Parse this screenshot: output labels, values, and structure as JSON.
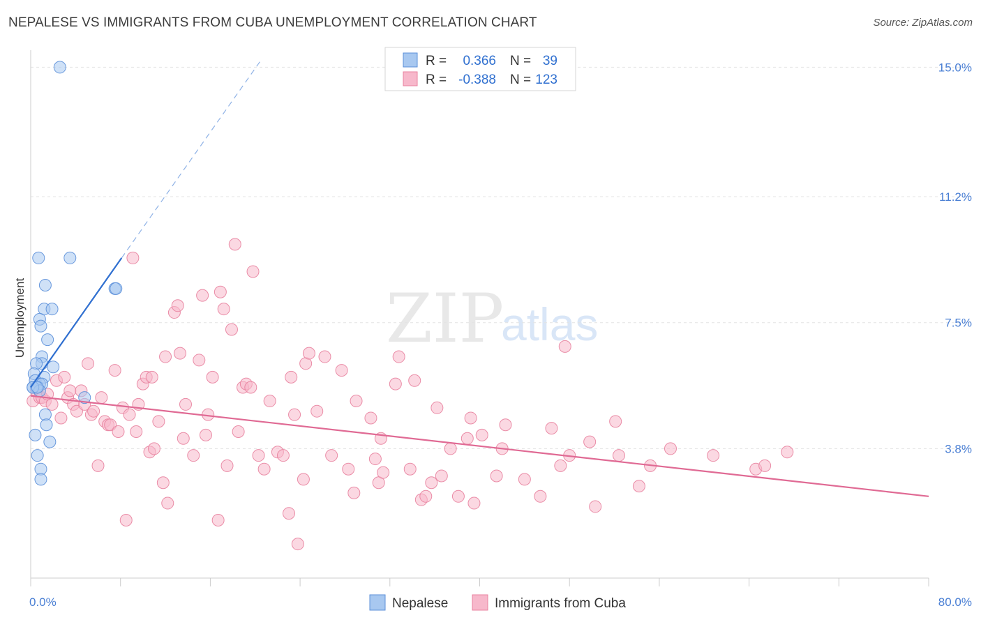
{
  "title": "NEPALESE VS IMMIGRANTS FROM CUBA UNEMPLOYMENT CORRELATION CHART",
  "source": "Source: ZipAtlas.com",
  "watermark": {
    "zip": "ZIP",
    "atlas": "atlas"
  },
  "stats_box": {
    "r_label": "R =",
    "n_label": "N =",
    "rows": [
      {
        "series": "Nepalese",
        "r": "0.366",
        "n": "39",
        "color": "#a8c8f0",
        "stroke": "#5b8fd9"
      },
      {
        "series": "Immigrants from Cuba",
        "r": "-0.388",
        "n": "123",
        "color": "#f7b8cb",
        "stroke": "#e8829f"
      }
    ]
  },
  "chart_data": {
    "type": "scatter",
    "title": "NEPALESE VS IMMIGRANTS FROM CUBA UNEMPLOYMENT CORRELATION CHART",
    "xlabel": "",
    "ylabel": "Unemployment",
    "xlim": [
      0,
      80
    ],
    "ylim": [
      0,
      15.5
    ],
    "x_tick_labels": [
      {
        "value": 0,
        "label": "0.0%"
      },
      {
        "value": 80,
        "label": "80.0%"
      }
    ],
    "y_tick_labels": [
      {
        "value": 3.8,
        "label": "3.8%"
      },
      {
        "value": 7.5,
        "label": "7.5%"
      },
      {
        "value": 11.2,
        "label": "11.2%"
      },
      {
        "value": 15.0,
        "label": "15.0%"
      }
    ],
    "grid": "horizontal-dashed",
    "legend_position": "bottom-center",
    "series": [
      {
        "name": "Nepalese",
        "color": "#a8c8f0",
        "stroke": "#5b8fd9",
        "trend": {
          "x0": 0,
          "y0": 5.6,
          "x1": 8.1,
          "y1": 9.4,
          "dash_to_x": 20.5,
          "dash_to_y": 15.2,
          "color": "#2f6fd0"
        },
        "points": [
          [
            2.6,
            15.0
          ],
          [
            0.7,
            9.4
          ],
          [
            3.5,
            9.4
          ],
          [
            1.3,
            8.6
          ],
          [
            7.5,
            8.5
          ],
          [
            7.6,
            8.5
          ],
          [
            1.2,
            7.9
          ],
          [
            1.9,
            7.9
          ],
          [
            0.8,
            7.6
          ],
          [
            0.9,
            7.4
          ],
          [
            1.5,
            7.0
          ],
          [
            1.0,
            6.5
          ],
          [
            1.0,
            6.3
          ],
          [
            2.0,
            6.2
          ],
          [
            0.5,
            6.3
          ],
          [
            0.3,
            6.0
          ],
          [
            1.2,
            5.9
          ],
          [
            0.4,
            5.8
          ],
          [
            0.8,
            5.7
          ],
          [
            1.0,
            5.7
          ],
          [
            0.2,
            5.6
          ],
          [
            0.5,
            5.6
          ],
          [
            0.8,
            5.5
          ],
          [
            0.2,
            5.6
          ],
          [
            0.6,
            5.6
          ],
          [
            4.8,
            5.3
          ],
          [
            1.3,
            4.8
          ],
          [
            1.4,
            4.5
          ],
          [
            0.4,
            4.2
          ],
          [
            1.7,
            4.0
          ],
          [
            0.6,
            3.6
          ],
          [
            0.9,
            3.2
          ],
          [
            0.9,
            2.9
          ]
        ]
      },
      {
        "name": "Immigrants from Cuba",
        "color": "#f7b8cb",
        "stroke": "#e8829f",
        "trend": {
          "x0": 0,
          "y0": 5.35,
          "x1": 80,
          "y1": 2.4,
          "color": "#e06a94"
        },
        "points": [
          [
            0.2,
            5.2
          ],
          [
            0.5,
            5.5
          ],
          [
            0.8,
            5.3
          ],
          [
            1.0,
            5.3
          ],
          [
            1.3,
            5.2
          ],
          [
            1.5,
            5.4
          ],
          [
            1.9,
            5.1
          ],
          [
            2.3,
            5.8
          ],
          [
            2.7,
            4.7
          ],
          [
            3.0,
            5.9
          ],
          [
            3.3,
            5.3
          ],
          [
            3.5,
            5.5
          ],
          [
            3.8,
            5.1
          ],
          [
            4.1,
            4.9
          ],
          [
            4.5,
            5.5
          ],
          [
            4.8,
            5.1
          ],
          [
            5.1,
            6.3
          ],
          [
            5.4,
            4.8
          ],
          [
            5.6,
            4.9
          ],
          [
            6.0,
            3.3
          ],
          [
            6.3,
            5.3
          ],
          [
            6.6,
            4.6
          ],
          [
            6.9,
            4.5
          ],
          [
            7.1,
            4.5
          ],
          [
            7.5,
            6.1
          ],
          [
            7.8,
            4.3
          ],
          [
            8.2,
            5.0
          ],
          [
            8.5,
            1.7
          ],
          [
            8.8,
            4.8
          ],
          [
            9.1,
            9.4
          ],
          [
            9.4,
            4.3
          ],
          [
            9.6,
            5.1
          ],
          [
            10.0,
            5.7
          ],
          [
            10.3,
            5.9
          ],
          [
            10.6,
            3.7
          ],
          [
            10.8,
            5.9
          ],
          [
            11.0,
            3.8
          ],
          [
            11.4,
            4.6
          ],
          [
            11.8,
            2.8
          ],
          [
            12.0,
            6.5
          ],
          [
            12.2,
            2.2
          ],
          [
            12.8,
            7.8
          ],
          [
            13.1,
            8.0
          ],
          [
            13.3,
            6.6
          ],
          [
            13.6,
            4.1
          ],
          [
            13.8,
            5.1
          ],
          [
            14.5,
            3.6
          ],
          [
            15.0,
            6.4
          ],
          [
            15.3,
            8.3
          ],
          [
            15.6,
            4.2
          ],
          [
            15.8,
            4.8
          ],
          [
            16.2,
            5.9
          ],
          [
            16.7,
            1.7
          ],
          [
            16.9,
            8.4
          ],
          [
            17.2,
            7.9
          ],
          [
            17.5,
            3.3
          ],
          [
            17.9,
            7.3
          ],
          [
            18.2,
            9.8
          ],
          [
            18.5,
            4.3
          ],
          [
            18.9,
            5.6
          ],
          [
            19.2,
            5.7
          ],
          [
            19.6,
            5.6
          ],
          [
            19.8,
            9.0
          ],
          [
            20.3,
            3.6
          ],
          [
            20.8,
            3.2
          ],
          [
            21.3,
            5.2
          ],
          [
            22.0,
            3.7
          ],
          [
            22.5,
            3.6
          ],
          [
            23.0,
            1.9
          ],
          [
            23.2,
            5.9
          ],
          [
            23.5,
            4.8
          ],
          [
            23.8,
            1.0
          ],
          [
            24.3,
            2.9
          ],
          [
            24.5,
            6.3
          ],
          [
            24.8,
            6.6
          ],
          [
            25.5,
            4.9
          ],
          [
            26.2,
            6.5
          ],
          [
            26.8,
            3.6
          ],
          [
            27.7,
            6.1
          ],
          [
            28.3,
            3.2
          ],
          [
            28.8,
            2.5
          ],
          [
            29.0,
            5.2
          ],
          [
            30.3,
            4.7
          ],
          [
            30.7,
            3.5
          ],
          [
            31.0,
            2.8
          ],
          [
            31.2,
            4.1
          ],
          [
            31.4,
            3.1
          ],
          [
            32.5,
            5.7
          ],
          [
            32.8,
            6.5
          ],
          [
            33.8,
            3.2
          ],
          [
            34.2,
            5.8
          ],
          [
            34.8,
            2.3
          ],
          [
            35.2,
            2.4
          ],
          [
            35.7,
            2.8
          ],
          [
            36.2,
            5.0
          ],
          [
            36.6,
            3.0
          ],
          [
            37.4,
            3.8
          ],
          [
            38.1,
            2.4
          ],
          [
            38.9,
            4.1
          ],
          [
            39.2,
            4.7
          ],
          [
            39.5,
            2.2
          ],
          [
            40.2,
            4.2
          ],
          [
            41.5,
            3.0
          ],
          [
            42.3,
            4.5
          ],
          [
            42.0,
            3.8
          ],
          [
            44.0,
            2.9
          ],
          [
            45.4,
            2.4
          ],
          [
            46.4,
            4.4
          ],
          [
            47.2,
            3.3
          ],
          [
            47.6,
            6.8
          ],
          [
            48.0,
            3.6
          ],
          [
            49.8,
            4.0
          ],
          [
            50.3,
            2.1
          ],
          [
            52.1,
            4.6
          ],
          [
            52.4,
            3.6
          ],
          [
            54.2,
            2.7
          ],
          [
            55.2,
            3.3
          ],
          [
            57.0,
            3.8
          ],
          [
            60.8,
            3.6
          ],
          [
            64.6,
            3.2
          ],
          [
            65.4,
            3.3
          ],
          [
            67.4,
            3.7
          ]
        ]
      }
    ]
  }
}
